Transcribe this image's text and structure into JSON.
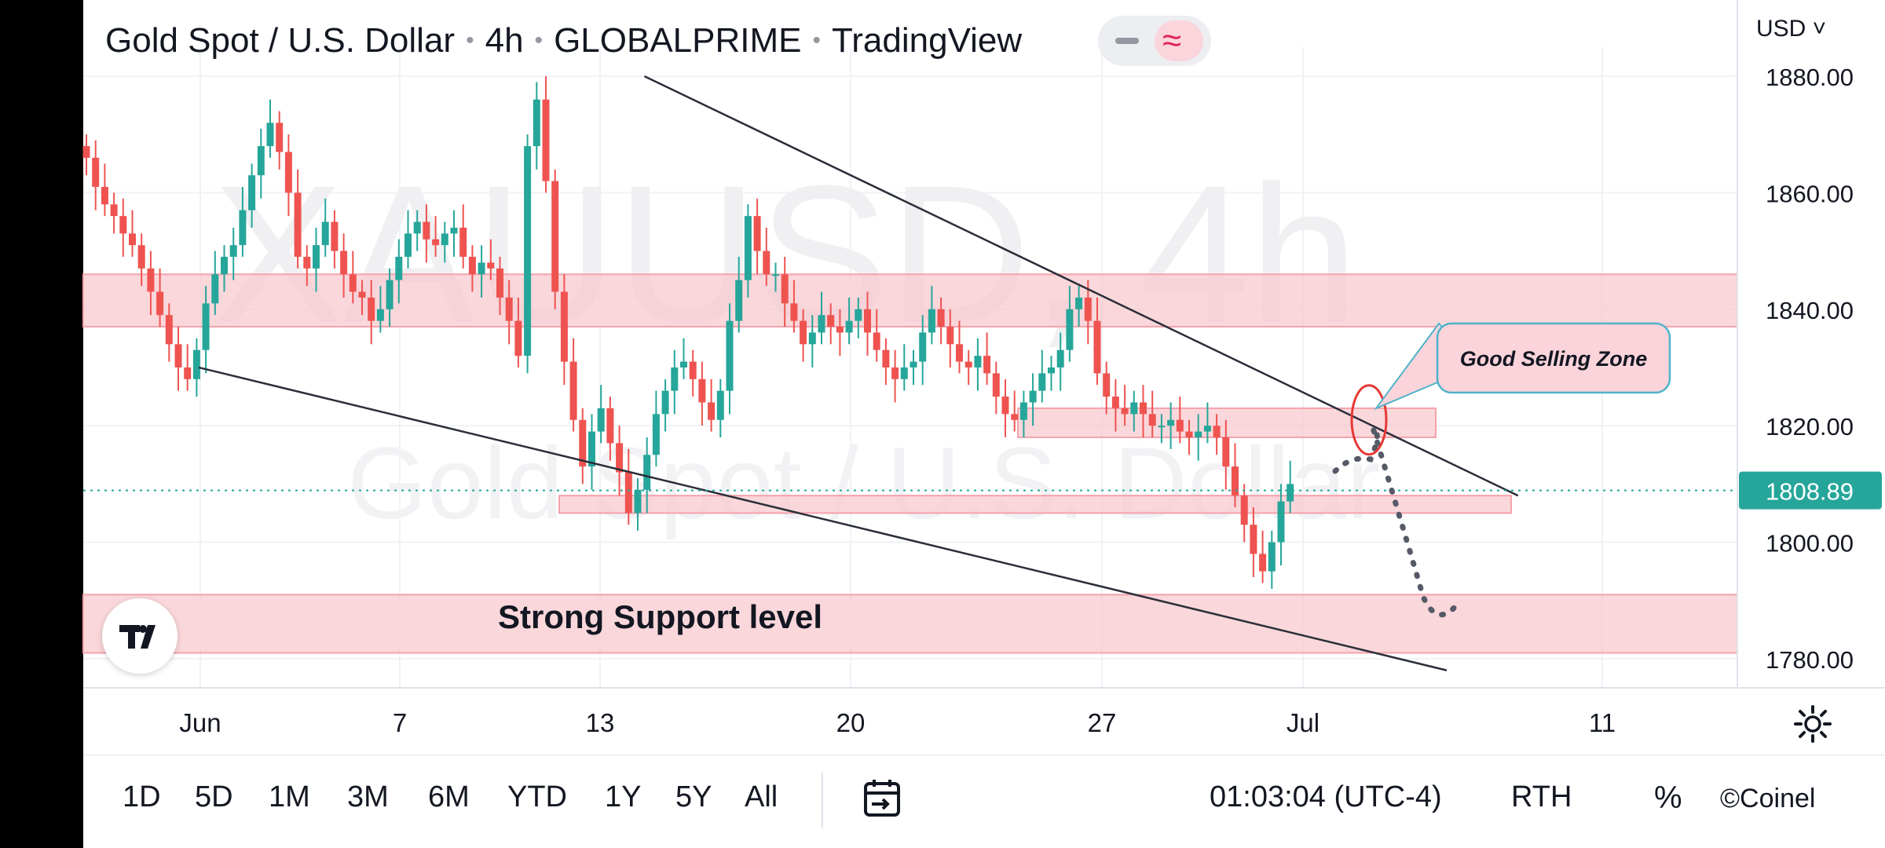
{
  "header": {
    "symbol_name": "Gold Spot / U.S. Dollar",
    "interval": "4h",
    "broker": "GLOBALPRIME",
    "platform": "TradingView",
    "currency": "USD ˅"
  },
  "watermark": {
    "ticker": "XAUUSD, 4h",
    "name": "Gold Spot / U.S. Dollar"
  },
  "annotations": {
    "callout": "Good Selling Zone",
    "support_label": "Strong Support level"
  },
  "price_scale": {
    "ticks": [
      "1880.00",
      "1860.00",
      "1840.00",
      "1820.00",
      "1800.00",
      "1780.00"
    ],
    "current_price": "1808.89",
    "current_price_color": "#26a69a"
  },
  "time_axis": {
    "ticks": [
      "Jun",
      "7",
      "13",
      "20",
      "27",
      "Jul",
      "11"
    ]
  },
  "toolbar": {
    "ranges": [
      "1D",
      "5D",
      "1M",
      "3M",
      "6M",
      "YTD",
      "1Y",
      "5Y",
      "All"
    ],
    "clock": "01:03:04 (UTC-4)",
    "rth": "RTH",
    "percent": "%",
    "logo_text": "©Coinel"
  },
  "colors": {
    "up": "#26a69a",
    "down": "#ef5350",
    "zone": "#f8c9cf",
    "zone_border": "#f3a3ad"
  },
  "chart_data": {
    "type": "candlestick",
    "title": "Gold Spot / U.S. Dollar · 4h · GLOBALPRIME",
    "ylim": [
      1775,
      1885
    ],
    "x_ticks": [
      "Jun",
      "7",
      "13",
      "20",
      "27",
      "Jul",
      "11"
    ],
    "closes": [
      1866,
      1861,
      1858,
      1856,
      1853,
      1851,
      1847,
      1843,
      1839,
      1834,
      1830,
      1828,
      1833,
      1841,
      1846,
      1849,
      1851,
      1857,
      1863,
      1868,
      1872,
      1867,
      1860,
      1849,
      1847,
      1851,
      1855,
      1850,
      1846,
      1843,
      1842,
      1838,
      1840,
      1845,
      1849,
      1853,
      1855,
      1852,
      1851,
      1853,
      1854,
      1849,
      1846,
      1848,
      1847,
      1842,
      1838,
      1832,
      1868,
      1876,
      1862,
      1843,
      1831,
      1821,
      1813,
      1819,
      1823,
      1817,
      1812,
      1805,
      1809,
      1815,
      1822,
      1826,
      1830,
      1831,
      1828,
      1824,
      1821,
      1826,
      1838,
      1845,
      1856,
      1850,
      1846,
      1846,
      1841,
      1838,
      1834,
      1836,
      1839,
      1837,
      1836,
      1838,
      1840,
      1836,
      1833,
      1830,
      1828,
      1830,
      1831,
      1836,
      1840,
      1837,
      1834,
      1831,
      1830,
      1832,
      1829,
      1825,
      1822,
      1821,
      1824,
      1826,
      1829,
      1830,
      1833,
      1840,
      1842,
      1838,
      1829,
      1825,
      1823,
      1822,
      1824,
      1822,
      1820,
      1820,
      1821,
      1819,
      1818,
      1819,
      1820,
      1818,
      1813,
      1808,
      1803,
      1798,
      1795,
      1800,
      1807,
      1810
    ],
    "zones": [
      {
        "from": 1837,
        "to": 1846
      },
      {
        "from": 1818,
        "to": 1823
      },
      {
        "from": 1805,
        "to": 1808
      },
      {
        "from": 1781,
        "to": 1791
      }
    ],
    "trendlines": [
      {
        "from": [
          12.5,
          1880
        ],
        "to": [
          37,
          1808
        ]
      },
      {
        "from": [
          0,
          1830
        ],
        "to": [
          35,
          1778
        ]
      }
    ],
    "current_price": 1808.89
  }
}
